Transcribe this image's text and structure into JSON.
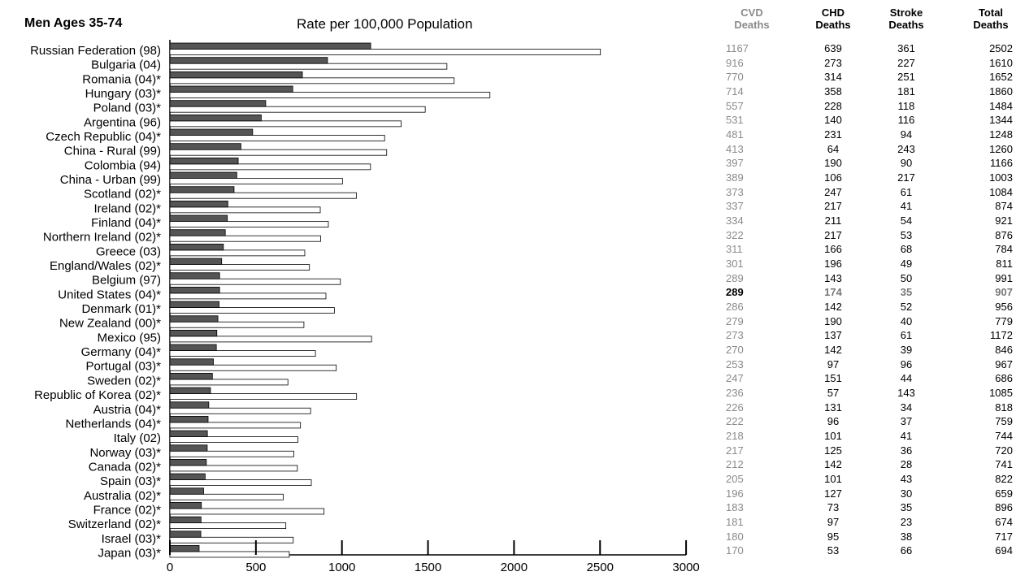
{
  "group_title": "Men Ages 35-74",
  "colors": {
    "cvd_bar": "#555555",
    "total_bar": "#ffffff",
    "grey_text": "#8a8a8a"
  },
  "table": {
    "headers": {
      "cvd": [
        "CVD",
        "Deaths"
      ],
      "chd": [
        "CHD",
        "Deaths"
      ],
      "stroke": [
        "Stroke",
        "Deaths"
      ],
      "total": [
        "Total",
        "Deaths"
      ]
    },
    "highlight_country": "United States (04)*"
  },
  "chart_data": {
    "type": "bar",
    "orientation": "horizontal",
    "title": "Rate per 100,000 Population",
    "xlim": [
      0,
      3000
    ],
    "xticks": [
      "0",
      "500",
      "1000",
      "1500",
      "2000",
      "2500",
      "3000"
    ],
    "categories": [
      "Russian Federation (98)",
      "Bulgaria (04)",
      "Romania (04)*",
      "Hungary (03)*",
      "Poland (03)*",
      "Argentina (96)",
      "Czech Republic (04)*",
      "China - Rural (99)",
      "Colombia (94)",
      "China - Urban (99)",
      "Scotland (02)*",
      "Ireland (02)*",
      "Finland (04)*",
      "Northern Ireland (02)*",
      "Greece (03)",
      "England/Wales (02)*",
      "Belgium (97)",
      "United States (04)*",
      "Denmark (01)*",
      "New Zealand (00)*",
      "Mexico (95)",
      "Germany (04)*",
      "Portugal (03)*",
      "Sweden (02)*",
      "Republic of Korea (02)*",
      "Austria (04)*",
      "Netherlands (04)*",
      "Italy (02)",
      "Norway (03)*",
      "Canada (02)*",
      "Spain (03)*",
      "Australia (02)*",
      "France (02)*",
      "Switzerland (02)*",
      "Israel (03)*",
      "Japan (03)*"
    ],
    "series": [
      {
        "values": [
          1167,
          916,
          770,
          714,
          557,
          531,
          481,
          413,
          397,
          389,
          373,
          337,
          334,
          322,
          311,
          301,
          289,
          289,
          286,
          279,
          273,
          270,
          253,
          247,
          236,
          226,
          222,
          218,
          217,
          212,
          205,
          196,
          183,
          181,
          180,
          170
        ]
      },
      {
        "values": [
          2502,
          1610,
          1652,
          1860,
          1484,
          1344,
          1248,
          1260,
          1166,
          1003,
          1084,
          874,
          921,
          876,
          784,
          811,
          991,
          907,
          956,
          779,
          1172,
          846,
          967,
          686,
          1085,
          818,
          759,
          744,
          720,
          741,
          822,
          659,
          896,
          674,
          717,
          694
        ]
      }
    ],
    "chd": [
      639,
      273,
      314,
      358,
      228,
      140,
      231,
      64,
      190,
      106,
      247,
      217,
      211,
      217,
      166,
      196,
      143,
      174,
      142,
      190,
      137,
      142,
      97,
      151,
      57,
      131,
      96,
      101,
      125,
      142,
      101,
      127,
      73,
      97,
      95,
      53
    ],
    "stroke": [
      361,
      227,
      251,
      181,
      118,
      116,
      94,
      243,
      90,
      217,
      61,
      41,
      54,
      53,
      68,
      49,
      50,
      35,
      52,
      40,
      61,
      39,
      96,
      44,
      143,
      34,
      37,
      41,
      36,
      28,
      43,
      30,
      35,
      23,
      38,
      66
    ]
  }
}
